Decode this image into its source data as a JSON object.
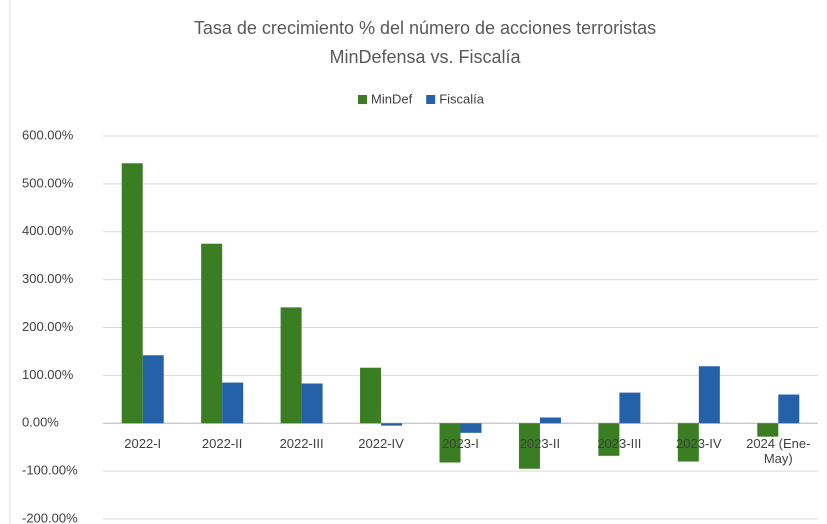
{
  "chart_data": {
    "type": "bar",
    "title": "Tasa de crecimiento % del número de acciones terroristas",
    "subtitle": "MinDefensa vs. Fiscalía",
    "categories": [
      "2022-I",
      "2022-II",
      "2022-III",
      "2022-IV",
      "2023-I",
      "2023-II",
      "2023-III",
      "2023-IV",
      "2024 (Ene-May)"
    ],
    "series": [
      {
        "name": "MinDef",
        "color": "#3a7d22",
        "values": [
          543,
          375,
          242,
          116,
          -82,
          -95,
          -68,
          -80,
          -28
        ]
      },
      {
        "name": "Fiscalía",
        "color": "#2561a8",
        "values": [
          142,
          85,
          83,
          -5,
          -20,
          12,
          64,
          119,
          60
        ]
      }
    ],
    "ylim": [
      -200,
      600
    ],
    "yticks": [
      {
        "value": -200,
        "label": "-200.00%"
      },
      {
        "value": -100,
        "label": "-100.00%"
      },
      {
        "value": 0,
        "label": "0.00%"
      },
      {
        "value": 100,
        "label": "100.00%"
      },
      {
        "value": 200,
        "label": "200.00%"
      },
      {
        "value": 300,
        "label": "300.00%"
      },
      {
        "value": 400,
        "label": "400.00%"
      },
      {
        "value": 500,
        "label": "500.00%"
      },
      {
        "value": 600,
        "label": "600.00%"
      }
    ],
    "grid": true,
    "legend": "top"
  }
}
